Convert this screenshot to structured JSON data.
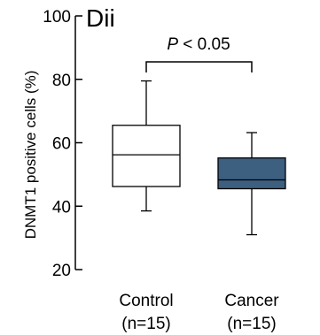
{
  "chart_data": {
    "type": "box",
    "panel_label": "Dii",
    "ylabel": "DNMT1 positive cells (%)",
    "ylim": [
      20,
      100
    ],
    "yticks": [
      20,
      40,
      60,
      80,
      100
    ],
    "categories": [
      {
        "name": "Control",
        "n_label": "(n=15)"
      },
      {
        "name": "Cancer",
        "n_label": "(n=15)"
      }
    ],
    "boxes": [
      {
        "category": "Control",
        "min": 38.5,
        "q1": 46.2,
        "median": 56.2,
        "q3": 65.5,
        "max": 79.5,
        "fill": "#ffffff"
      },
      {
        "category": "Cancer",
        "min": 31.0,
        "q1": 45.5,
        "median": 48.3,
        "q3": 55.2,
        "max": 63.2,
        "fill": "#3d5f80"
      }
    ],
    "annotation": {
      "italic_part": "P",
      "rest": " < 0.05"
    },
    "grid": false
  }
}
